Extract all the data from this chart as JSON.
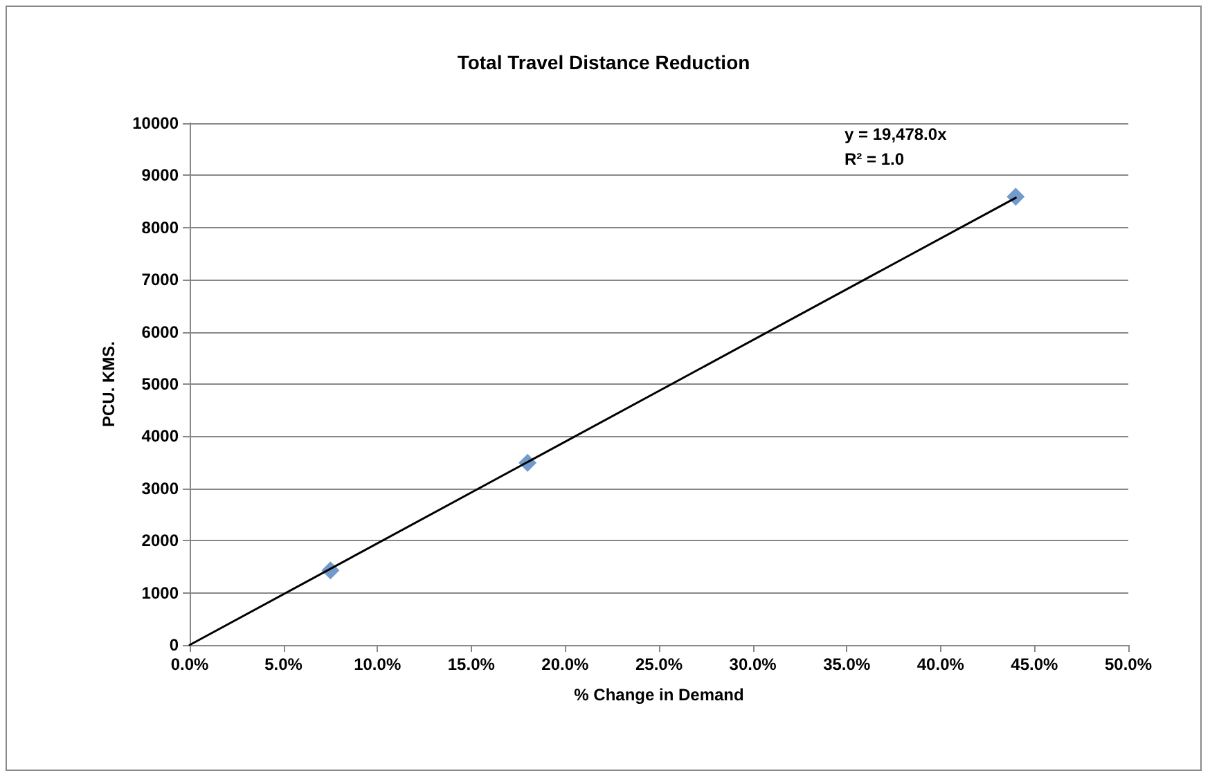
{
  "chart_data": {
    "type": "scatter",
    "title": "Total Travel Distance Reduction",
    "xlabel": "% Change in Demand",
    "ylabel": "PCU. KMS.",
    "x": [
      0.075,
      0.18,
      0.44
    ],
    "series": [
      {
        "color": "#4f81bd",
        "marker": "diamond",
        "values": [
          1430,
          3490,
          8590
        ]
      },
      {
        "type": "line",
        "color": "#000000",
        "marker": "none",
        "x": [
          0,
          0.44
        ],
        "values": [
          0,
          8570
        ]
      }
    ],
    "annotations": [
      "y = 19,478.0x",
      "R² = 1.0"
    ],
    "xlim": [
      0,
      0.5
    ],
    "xticks": [
      {
        "value": 0,
        "label": "0.0%"
      },
      {
        "value": 0.05,
        "label": "5.0%"
      },
      {
        "value": 0.1,
        "label": "10.0%"
      },
      {
        "value": 0.15,
        "label": "15.0%"
      },
      {
        "value": 0.2,
        "label": "20.0%"
      },
      {
        "value": 0.25,
        "label": "25.0%"
      },
      {
        "value": 0.3,
        "label": "30.0%"
      },
      {
        "value": 0.35,
        "label": "35.0%"
      },
      {
        "value": 0.4,
        "label": "40.0%"
      },
      {
        "value": 0.45,
        "label": "45.0%"
      },
      {
        "value": 0.5,
        "label": "50.0%"
      }
    ],
    "ylim": [
      0,
      10000
    ],
    "yticks": [
      0,
      1000,
      2000,
      3000,
      4000,
      5000,
      6000,
      7000,
      8000,
      9000,
      10000
    ],
    "grid": "y"
  }
}
